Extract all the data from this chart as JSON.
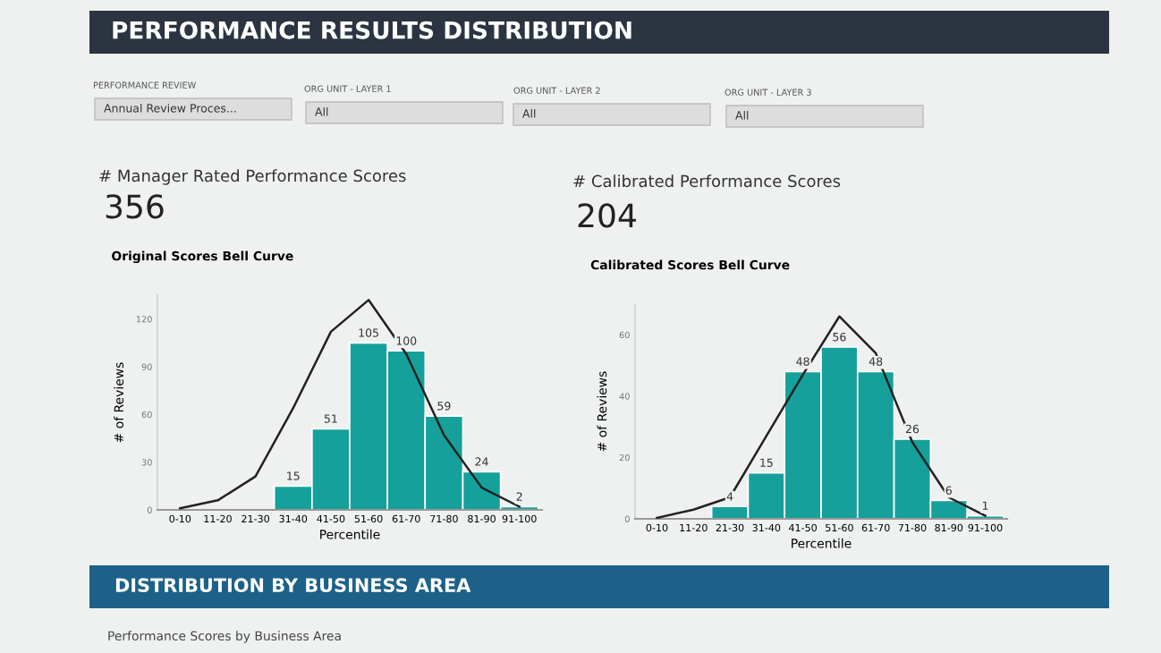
{
  "chart_data": [
    {
      "type": "bar",
      "title": "Original Scores Bell Curve",
      "xlabel": "Percentile",
      "ylabel": "# of Reviews",
      "categories": [
        "0-10",
        "11-20",
        "21-30",
        "31-40",
        "41-50",
        "51-60",
        "61-70",
        "71-80",
        "81-90",
        "91-100"
      ],
      "series": [
        {
          "color": "#16a09b",
          "values": [
            null,
            null,
            null,
            15,
            51,
            105,
            100,
            59,
            24,
            2
          ],
          "value_labels": [
            null,
            null,
            null,
            "15",
            "51",
            "105",
            "100",
            "59",
            "24",
            "2"
          ]
        },
        {
          "type": "line",
          "color": "#222222",
          "values": [
            1,
            6,
            21,
            64,
            112,
            132,
            98,
            47,
            14,
            2
          ]
        }
      ],
      "ylim": [
        0,
        135
      ],
      "yticks": [
        0,
        30,
        60,
        90,
        120
      ],
      "grid": false,
      "legend": false,
      "annotations": [
        "PERFORMANCE RESULTS DISTRIBUTION",
        "PERFORMANCE REVIEW",
        "Annual Review Proces...",
        "ORG UNIT - LAYER 1",
        "All",
        "ORG UNIT - LAYER 2",
        "All",
        "ORG UNIT - LAYER 3",
        "All",
        "# Manager Rated Performance Scores",
        "356"
      ]
    },
    {
      "type": "bar",
      "title": "Calibrated Scores Bell Curve",
      "xlabel": "Percentile",
      "ylabel": "# of Reviews",
      "categories": [
        "0-10",
        "11-20",
        "21-30",
        "31-40",
        "41-50",
        "51-60",
        "61-70",
        "71-80",
        "81-90",
        "91-100"
      ],
      "series": [
        {
          "color": "#16a09b",
          "values": [
            null,
            null,
            4,
            15,
            48,
            56,
            48,
            26,
            6,
            1
          ],
          "value_labels": [
            null,
            null,
            "4",
            "15",
            "48",
            "56",
            "48",
            "26",
            "6",
            "1"
          ]
        },
        {
          "type": "line",
          "color": "#222222",
          "values": [
            0.3,
            3,
            7,
            27,
            47,
            66,
            54,
            25,
            7,
            1
          ]
        }
      ],
      "ylim": [
        0,
        70
      ],
      "yticks": [
        0,
        20,
        40,
        60
      ],
      "grid": false,
      "legend": false,
      "annotations": [
        "# Calibrated Performance Scores",
        "204",
        "DISTRIBUTION BY BUSINESS AREA",
        "Performance Scores by Business Area"
      ]
    }
  ]
}
